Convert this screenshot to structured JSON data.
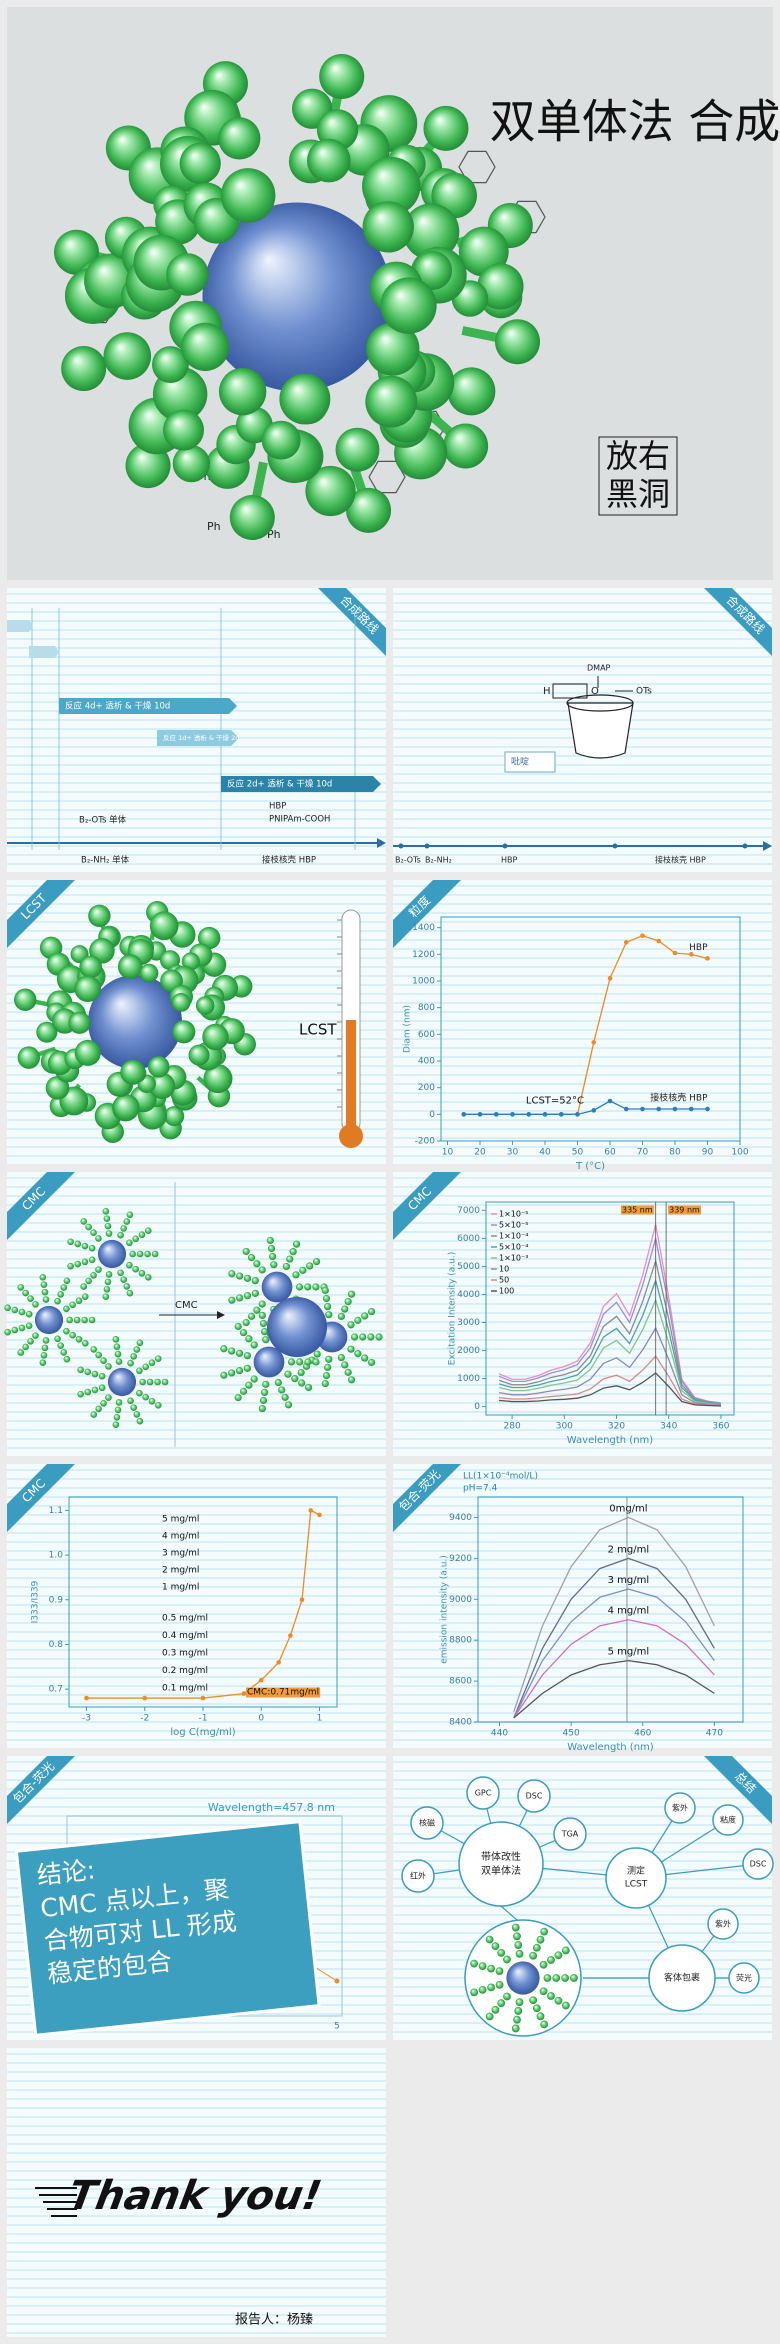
{
  "cover": {
    "title": "双单体法 合成",
    "logo": [
      "放右",
      "黑洞"
    ],
    "group_label": "Ph"
  },
  "slides": [
    {
      "tag": "合成路线",
      "tag_corner": "right",
      "steps": [
        "反应 4d+ 透析 & 干燥 10d",
        "反应 1d+ 透析 & 干燥 2d",
        "反应 2d+ 透析 & 干燥 10d"
      ],
      "labels": [
        "B₂-OTs 单体",
        "B₂-NH₂ 单体",
        "HBP",
        "PNIPAm-COOH",
        "接枝核壳 HBP"
      ]
    },
    {
      "tag": "合成路线",
      "tag_corner": "right",
      "reagent": "DMAP",
      "group": "OTs",
      "fragment": [
        "H",
        "O"
      ],
      "solvent": "吡啶",
      "labels": [
        "B₂-OTs",
        "B₂-NH₂",
        "HBP",
        "接枝核壳 HBP"
      ]
    },
    {
      "tag": "LCST",
      "tag_corner": "left",
      "label": "LCST"
    },
    {
      "tag": "粒度",
      "tag_corner": "left",
      "chart_data": {
        "type": "line",
        "xlabel": "T (°C)",
        "ylabel": "Diam (nm)",
        "annotation": "LCST=52°C",
        "markers": true,
        "x": [
          15,
          20,
          25,
          30,
          35,
          40,
          45,
          50,
          55,
          60,
          65,
          70,
          75,
          80,
          85,
          90
        ],
        "xlim": [
          8,
          100
        ],
        "xticks": [
          10,
          20,
          30,
          40,
          50,
          60,
          70,
          80,
          90,
          100
        ],
        "ylim": [
          -200,
          1480
        ],
        "yticks": [
          -200,
          0,
          200,
          400,
          600,
          800,
          1000,
          1200,
          1400
        ],
        "series": [
          {
            "name": "HBP",
            "color": "#f08a24",
            "values": [
              0,
              0,
              0,
              0,
              0,
              0,
              0,
              0,
              540,
              1020,
              1290,
              1340,
              1300,
              1210,
              1200,
              1170
            ]
          },
          {
            "name": "接枝核壳 HBP",
            "color": "#2c7fb8",
            "values": [
              0,
              0,
              0,
              0,
              0,
              0,
              0,
              0,
              30,
              100,
              40,
              40,
              40,
              40,
              40,
              40
            ]
          }
        ]
      }
    },
    {
      "tag": "CMC",
      "tag_corner": "left",
      "arrow_label": "CMC"
    },
    {
      "tag": "CMC",
      "tag_corner": "left",
      "chart_data": {
        "type": "line",
        "xlabel": "Wavelength (nm)",
        "ylabel": "Excitation Intensity (a.u.)",
        "markers": false,
        "legend": "top-left",
        "x": [
          275,
          280,
          285,
          290,
          295,
          300,
          305,
          310,
          315,
          320,
          325,
          330,
          335,
          340,
          345,
          350,
          355,
          360
        ],
        "xlim": [
          270,
          365
        ],
        "xticks": [
          280,
          300,
          320,
          340,
          360
        ],
        "ylim": [
          -300,
          7300
        ],
        "yticks": [
          0,
          1000,
          2000,
          3000,
          4000,
          5000,
          6000,
          7000
        ],
        "lines": [
          {
            "value": 335,
            "label": "335 nm"
          },
          {
            "value": 339,
            "label": "339 nm"
          }
        ],
        "series": [
          {
            "name": "1×10⁻⁵",
            "color": "#e68fc6",
            "values": [
              1170,
              975,
              975,
              1105,
              1300,
              1430,
              1625,
              2275,
              3575,
              4030,
              3250,
              4680,
              6500,
              3900,
              975,
              325,
              195,
              130
            ]
          },
          {
            "name": "5×10⁻⁵",
            "color": "#9a8ed6",
            "values": [
              1080,
              900,
              900,
              1020,
              1200,
              1320,
              1500,
              2100,
              3300,
              3720,
              3000,
              4320,
              6000,
              3600,
              900,
              300,
              180,
              120
            ]
          },
          {
            "name": "1×10⁻⁴",
            "color": "#8c8c8c",
            "values": [
              940,
              780,
              780,
              880,
              1040,
              1140,
              1300,
              1820,
              2860,
              3220,
              2600,
              3740,
              5200,
              3120,
              780,
              260,
              160,
              100
            ]
          },
          {
            "name": "5×10⁻⁴",
            "color": "#4fa3a3",
            "values": [
              810,
              680,
              680,
              770,
              900,
              990,
              1130,
              1580,
              2480,
              2790,
              2250,
              3240,
              4500,
              2700,
              680,
              230,
              140,
              90
            ]
          },
          {
            "name": "1×10⁻³",
            "color": "#86c586",
            "values": [
              680,
              570,
              570,
              650,
              760,
              840,
              950,
              1330,
              2090,
              2360,
              1900,
              2740,
              3800,
              2280,
              570,
              190,
              110,
              80
            ]
          },
          {
            "name": "10",
            "color": "#8a8ab8",
            "values": [
              500,
              420,
              420,
              480,
              560,
              620,
              700,
              980,
              1540,
              1740,
              1400,
              2020,
              2800,
              1680,
              420,
              140,
              80,
              60
            ]
          },
          {
            "name": "50",
            "color": "#d88a8a",
            "values": [
              320,
              270,
              270,
              310,
              360,
              400,
              450,
              630,
              990,
              1120,
              900,
              1300,
              1800,
              1080,
              270,
              90,
              50,
              40
            ]
          },
          {
            "name": "100",
            "color": "#555555",
            "values": [
              220,
              180,
              180,
              200,
              240,
              260,
              300,
              420,
              660,
              740,
              600,
              860,
              1200,
              720,
              180,
              60,
              40,
              20
            ]
          }
        ]
      }
    },
    {
      "tag": "CMC",
      "tag_corner": "left",
      "chart_data": {
        "type": "line",
        "xlabel": "log C(mg/ml)",
        "ylabel": "I333/I339",
        "markers": true,
        "annotation": "CMC:0.71mg/ml",
        "concentrations": [
          "5 mg/ml",
          "4 mg/ml",
          "3 mg/ml",
          "2 mg/ml",
          "1 mg/ml",
          "0.5 mg/ml",
          "0.4 mg/ml",
          "0.3 mg/ml",
          "0.2 mg/ml",
          "0.1 mg/ml"
        ],
        "x": [
          -3,
          -2,
          -1,
          -0.3,
          0,
          0.3,
          0.5,
          0.7,
          0.85,
          1.0
        ],
        "xlim": [
          -3.3,
          1.3
        ],
        "xticks": [
          -3,
          -2,
          -1,
          0,
          1
        ],
        "ylim": [
          0.66,
          1.13
        ],
        "yticks": [
          0.7,
          0.8,
          0.9,
          {
            "value": 1,
            "label": "1.0"
          },
          1.1
        ],
        "series": [
          {
            "name": "I333/I339",
            "color": "#f08a24",
            "values": [
              0.68,
              0.68,
              0.68,
              0.69,
              0.72,
              0.76,
              0.82,
              0.9,
              1.1,
              1.09
            ]
          }
        ]
      }
    },
    {
      "tag": "包合-荧光",
      "tag_corner": "left",
      "chart_data": {
        "type": "line",
        "xlabel": "Wavelength (nm)",
        "ylabel": "emission intensity (a.u.)",
        "markers": false,
        "header": [
          "LL(1×10⁻⁴mol/L)",
          "pH=7.4"
        ],
        "vline": 457.8,
        "x": [
          442,
          446,
          450,
          454,
          458,
          462,
          466,
          470
        ],
        "xlim": [
          437,
          474
        ],
        "xticks": [
          440,
          450,
          460,
          470
        ],
        "ylim": [
          8400,
          9500
        ],
        "yticks": [
          8400,
          8600,
          8800,
          9000,
          9200,
          9400
        ],
        "series": [
          {
            "name": "0mg/ml",
            "color": "#a0a0a0",
            "values": [
              8450,
              8870,
              9160,
              9340,
              9400,
              9340,
              9160,
              8870
            ]
          },
          {
            "name": "2 mg/ml",
            "color": "#6a6a8a",
            "values": [
              8420,
              8760,
              9000,
              9150,
              9200,
              9150,
              9000,
              8760
            ]
          },
          {
            "name": "3 mg/ml",
            "color": "#7f8fc8",
            "values": [
              8420,
              8700,
              8890,
              9010,
              9050,
              9010,
              8890,
              8700
            ]
          },
          {
            "name": "4 mg/ml",
            "color": "#d070c0",
            "values": [
              8420,
              8630,
              8780,
              8870,
              8900,
              8870,
              8780,
              8630
            ]
          },
          {
            "name": "5 mg/ml",
            "color": "#555555",
            "values": [
              8420,
              8540,
              8630,
              8680,
              8700,
              8680,
              8630,
              8540
            ]
          }
        ]
      }
    },
    {
      "tag": "包合-荧光",
      "tag_corner": "left",
      "subtitle": "Wavelength=457.8 nm",
      "conclusion": [
        "结论:",
        "CMC 点以上，聚",
        "合物可对 LL 形成",
        "稳定的包合"
      ],
      "xtick": 5
    },
    {
      "tag": "总结",
      "tag_corner": "right",
      "center": [
        "带体改性",
        "双单体法"
      ],
      "methods": [
        "GPC",
        "DSC",
        "TGA",
        "核磁",
        "红外"
      ],
      "lcst": [
        "测定",
        "LCST"
      ],
      "lcst_methods": [
        "紫外",
        "粘度",
        "DSC"
      ],
      "guest": "客体包裹",
      "guest_methods": [
        "紫外",
        "荧光"
      ]
    },
    {
      "title": "Thank you!",
      "reporter": "报告人：杨臻"
    }
  ]
}
